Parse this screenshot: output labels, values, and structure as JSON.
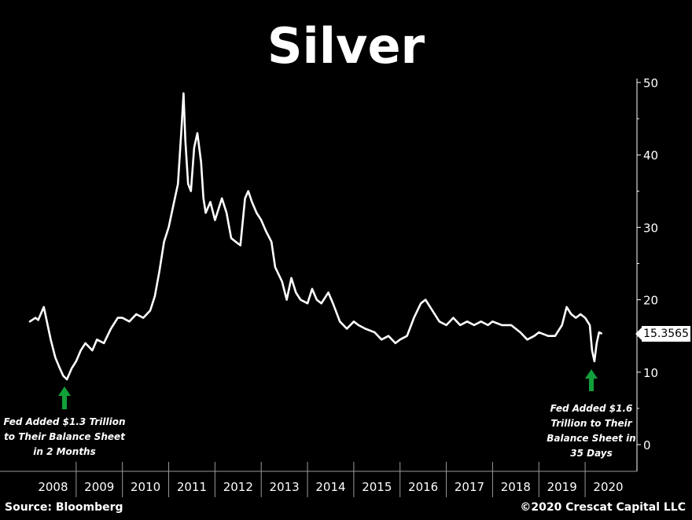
{
  "chart_data": {
    "type": "line",
    "title": "Silver",
    "xlabel": "",
    "ylabel": "",
    "ylim": [
      0,
      50
    ],
    "y_ticks": [
      0,
      10,
      20,
      30,
      40,
      50
    ],
    "x_tick_labels": [
      "2008",
      "2009",
      "2010",
      "2011",
      "2012",
      "2013",
      "2014",
      "2015",
      "2016",
      "2017",
      "2018",
      "2019",
      "2020"
    ],
    "last_value": "15.3565",
    "series": [
      {
        "color": "#ffffff",
        "x": [
          2008.0,
          2008.12,
          2008.18,
          2008.3,
          2008.45,
          2008.55,
          2008.65,
          2008.72,
          2008.8,
          2008.9,
          2009.0,
          2009.1,
          2009.2,
          2009.35,
          2009.45,
          2009.6,
          2009.75,
          2009.9,
          2010.0,
          2010.15,
          2010.3,
          2010.45,
          2010.6,
          2010.7,
          2010.8,
          2010.9,
          2011.0,
          2011.1,
          2011.2,
          2011.28,
          2011.32,
          2011.36,
          2011.42,
          2011.48,
          2011.55,
          2011.62,
          2011.7,
          2011.75,
          2011.8,
          2011.9,
          2012.0,
          2012.15,
          2012.25,
          2012.35,
          2012.45,
          2012.55,
          2012.65,
          2012.72,
          2012.8,
          2012.9,
          2013.0,
          2013.1,
          2013.22,
          2013.3,
          2013.45,
          2013.55,
          2013.65,
          2013.75,
          2013.85,
          2014.0,
          2014.1,
          2014.2,
          2014.3,
          2014.45,
          2014.55,
          2014.7,
          2014.85,
          2015.0,
          2015.1,
          2015.25,
          2015.45,
          2015.6,
          2015.75,
          2015.9,
          2016.0,
          2016.15,
          2016.3,
          2016.45,
          2016.55,
          2016.7,
          2016.85,
          2017.0,
          2017.15,
          2017.3,
          2017.45,
          2017.6,
          2017.75,
          2017.9,
          2018.0,
          2018.2,
          2018.4,
          2018.6,
          2018.75,
          2018.9,
          2019.0,
          2019.2,
          2019.35,
          2019.5,
          2019.6,
          2019.7,
          2019.8,
          2019.9,
          2020.0,
          2020.1,
          2020.15,
          2020.2,
          2020.25,
          2020.3,
          2020.35
        ],
        "values": [
          17.0,
          17.5,
          17.2,
          19.0,
          14.5,
          12.0,
          10.5,
          9.5,
          9.0,
          10.5,
          11.5,
          13.0,
          14.0,
          13.0,
          14.5,
          14.0,
          16.0,
          17.5,
          17.5,
          17.0,
          18.0,
          17.5,
          18.5,
          20.5,
          24.0,
          28.0,
          30.0,
          33.0,
          36.0,
          44.0,
          48.5,
          42.0,
          36.0,
          35.0,
          41.0,
          43.0,
          39.0,
          34.0,
          32.0,
          33.5,
          31.0,
          34.0,
          32.0,
          28.5,
          28.0,
          27.5,
          34.0,
          35.0,
          33.5,
          32.0,
          31.0,
          29.5,
          28.0,
          24.5,
          22.5,
          20.0,
          23.0,
          21.0,
          20.0,
          19.5,
          21.5,
          20.0,
          19.5,
          21.0,
          19.5,
          17.0,
          16.0,
          17.0,
          16.5,
          16.0,
          15.5,
          14.5,
          15.0,
          14.0,
          14.5,
          15.0,
          17.5,
          19.5,
          20.0,
          18.5,
          17.0,
          16.5,
          17.5,
          16.5,
          17.0,
          16.5,
          17.0,
          16.5,
          17.0,
          16.5,
          16.5,
          15.5,
          14.5,
          15.0,
          15.5,
          15.0,
          15.0,
          16.5,
          19.0,
          18.0,
          17.5,
          18.0,
          17.5,
          16.5,
          13.0,
          11.5,
          14.0,
          15.5,
          15.36
        ]
      }
    ]
  },
  "annotations": {
    "left": [
      "Fed Added $1.3 Trillion",
      "to Their Balance Sheet",
      "in 2 Months"
    ],
    "right": [
      "Fed Added $1.6",
      "Trillion to Their",
      "Balance Sheet in",
      "35 Days"
    ],
    "arrow_color": "#12a03a"
  },
  "footer": {
    "source": "Source: Bloomberg",
    "copyright": "©2020 Crescat Capital LLC"
  }
}
